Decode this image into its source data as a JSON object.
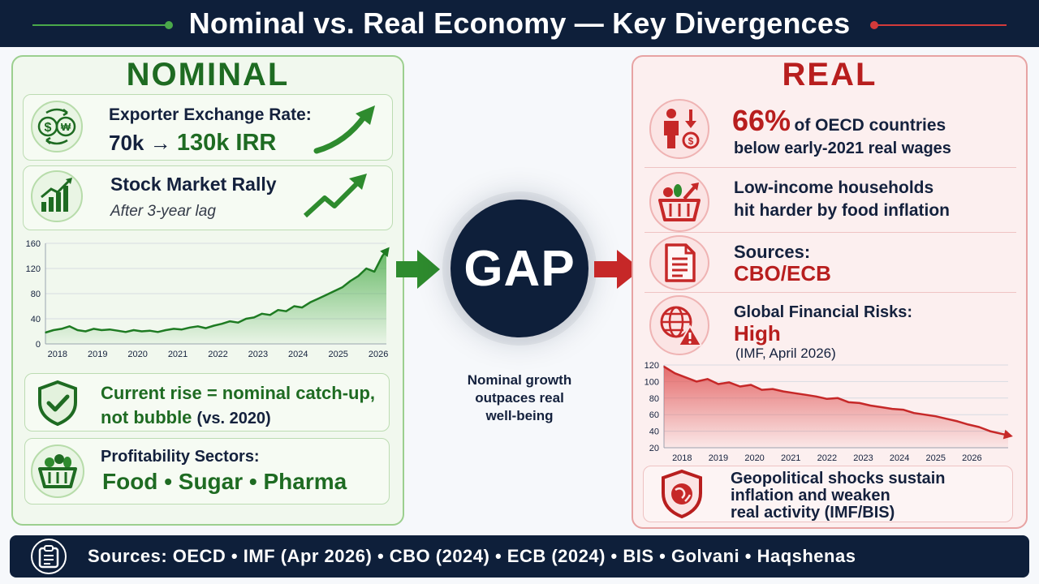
{
  "header": {
    "title": "Nominal vs. Real Economy — Key Divergences"
  },
  "nominal": {
    "title": "NOMINAL",
    "exchange": {
      "label": "Exporter Exchange Rate:",
      "from": "70k →",
      "to": "130k IRR"
    },
    "stock": {
      "title": "Stock Market Rally",
      "subtitle": "After 3-year lag"
    },
    "catchup": {
      "line1": "Current rise = nominal catch-up,",
      "line2_main": "not bubble",
      "line2_note": "(vs. 2020)"
    },
    "sectors": {
      "label": "Profitability Sectors:",
      "list": "Food • Sugar • Pharma"
    }
  },
  "center": {
    "gap_label": "GAP",
    "caption_1": "Nominal growth",
    "caption_2": "outpaces real",
    "caption_3": "well-being"
  },
  "real": {
    "title": "REAL",
    "wages": {
      "pct": "66%",
      "rest": "of OECD countries",
      "line2": "below early-2021 real wages"
    },
    "food": {
      "line1": "Low-income households",
      "line2": "hit harder by food inflation"
    },
    "sources": {
      "label": "Sources:",
      "value": "CBO/ECB"
    },
    "risks": {
      "label": "Global Financial Risks:",
      "value": "High",
      "note": "(IMF, April 2026)"
    },
    "geo": {
      "line1": "Geopolitical shocks sustain",
      "line2": "inflation and weaken",
      "line3": "real activity (IMF/BIS)"
    }
  },
  "footer": {
    "text": "Sources:  OECD • IMF (Apr 2026) • CBO (2024) • ECB (2024) • BIS • Golvani • Haqshenas"
  },
  "colors": {
    "navy": "#0e1f3a",
    "green": "#1e6b22",
    "red": "#b81e1e"
  },
  "chart_data": [
    {
      "type": "area",
      "x_ticks": [
        "2018",
        "2019",
        "2020",
        "2021",
        "2022",
        "2023",
        "2024",
        "2025",
        "2026"
      ],
      "y_ticks": [
        0,
        40,
        80,
        120,
        160
      ],
      "ylim": [
        0,
        160
      ],
      "xlim": [
        2017.7,
        2026.2
      ],
      "series": [
        {
          "x": [
            2017.7,
            2017.9,
            2018.1,
            2018.3,
            2018.5,
            2018.7,
            2018.9,
            2019.1,
            2019.3,
            2019.5,
            2019.7,
            2019.9,
            2020.1,
            2020.3,
            2020.5,
            2020.7,
            2020.9,
            2021.1,
            2021.3,
            2021.5,
            2021.7,
            2021.9,
            2022.1,
            2022.3,
            2022.5,
            2022.7,
            2022.9,
            2023.1,
            2023.3,
            2023.5,
            2023.7,
            2023.9,
            2024.1,
            2024.3,
            2024.5,
            2024.7,
            2024.9,
            2025.1,
            2025.3,
            2025.5,
            2025.7,
            2025.9,
            2026.1,
            2026.2
          ],
          "values": [
            18,
            22,
            24,
            28,
            22,
            20,
            24,
            22,
            23,
            21,
            19,
            22,
            20,
            21,
            19,
            22,
            24,
            23,
            26,
            28,
            25,
            29,
            32,
            36,
            34,
            40,
            42,
            48,
            46,
            54,
            52,
            60,
            58,
            66,
            72,
            78,
            84,
            90,
            100,
            108,
            120,
            115,
            140,
            148
          ]
        }
      ]
    },
    {
      "type": "area",
      "x_ticks": [
        "2018",
        "2019",
        "2020",
        "2021",
        "2022",
        "2023",
        "2024",
        "2025",
        "2026"
      ],
      "y_ticks": [
        20,
        40,
        60,
        80,
        100,
        120
      ],
      "ylim": [
        20,
        120
      ],
      "xlim": [
        2017.5,
        2027.0
      ],
      "series": [
        {
          "x": [
            2017.5,
            2017.8,
            2018.1,
            2018.4,
            2018.7,
            2019.0,
            2019.3,
            2019.6,
            2019.9,
            2020.2,
            2020.5,
            2020.8,
            2021.1,
            2021.4,
            2021.7,
            2022.0,
            2022.3,
            2022.6,
            2022.9,
            2023.2,
            2023.5,
            2023.8,
            2024.1,
            2024.4,
            2024.7,
            2025.0,
            2025.3,
            2025.6,
            2025.9,
            2026.2,
            2026.5,
            2027.0
          ],
          "values": [
            118,
            110,
            105,
            100,
            103,
            97,
            99,
            94,
            96,
            90,
            91,
            88,
            86,
            84,
            82,
            79,
            80,
            75,
            74,
            71,
            69,
            67,
            66,
            62,
            60,
            58,
            55,
            52,
            48,
            45,
            40,
            35
          ]
        }
      ]
    }
  ]
}
